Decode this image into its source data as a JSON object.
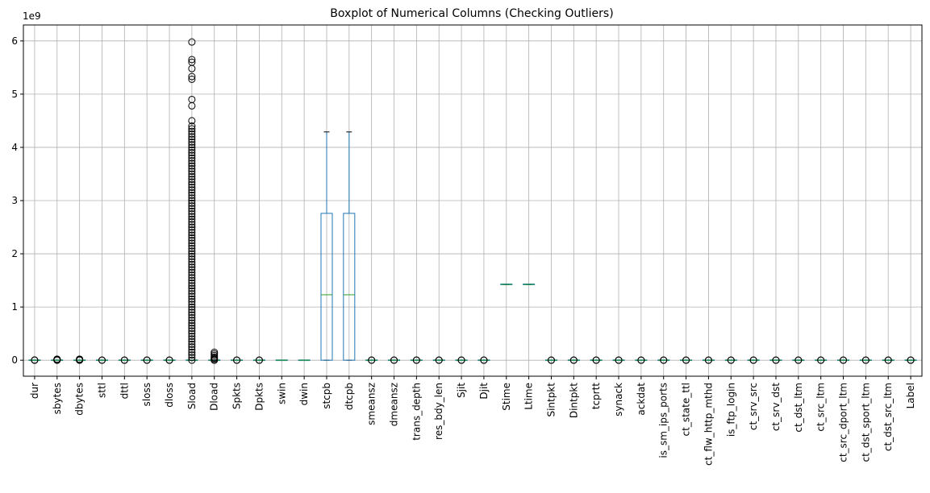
{
  "chart_data": {
    "type": "boxplot",
    "title": "Boxplot of Numerical Columns (Checking Outliers)",
    "y_offset_label": "1e9",
    "xlabel": "",
    "ylabel": "",
    "ylim": [
      -0.3,
      6.3
    ],
    "y_scale_factor": 1000000000,
    "yticks": [
      0,
      1,
      2,
      3,
      4,
      5,
      6
    ],
    "ytick_labels": [
      "0",
      "1",
      "2",
      "3",
      "4",
      "5",
      "6"
    ],
    "grid": true,
    "box_color": "#1f77b4",
    "median_color": "#2ca02c",
    "categories": [
      "dur",
      "sbytes",
      "dbytes",
      "sttl",
      "dttl",
      "sloss",
      "dloss",
      "Sload",
      "Dload",
      "Spkts",
      "Dpkts",
      "swin",
      "dwin",
      "stcpb",
      "dtcpb",
      "smeansz",
      "dmeansz",
      "trans_depth",
      "res_bdy_len",
      "Sjit",
      "Djit",
      "Stime",
      "Ltime",
      "Sintpkt",
      "Dintpkt",
      "tcprtt",
      "synack",
      "ackdat",
      "is_sm_ips_ports",
      "ct_state_ttl",
      "ct_flw_http_mthd",
      "is_ftp_login",
      "ct_srv_src",
      "ct_srv_dst",
      "ct_dst_ltm",
      "ct_src_ltm",
      "ct_src_dport_ltm",
      "ct_dst_sport_ltm",
      "ct_dst_src_ltm",
      "Label"
    ],
    "boxes": [
      {
        "q1": 0,
        "median": 0,
        "q3": 0,
        "whislo": 0,
        "whishi": 0,
        "fliers": [
          0,
          0.004
        ]
      },
      {
        "q1": 0,
        "median": 0,
        "q3": 0,
        "whislo": 0,
        "whishi": 0,
        "fliers": [
          0,
          0.005,
          0.01,
          0.015,
          0.02
        ]
      },
      {
        "q1": 0,
        "median": 0,
        "q3": 0,
        "whislo": 0,
        "whishi": 0,
        "fliers": [
          0,
          0.005,
          0.01,
          0.015,
          0.02
        ]
      },
      {
        "q1": 0,
        "median": 0,
        "q3": 0,
        "whislo": 0,
        "whishi": 0,
        "fliers": [
          0,
          0.002
        ]
      },
      {
        "q1": 0,
        "median": 0,
        "q3": 0,
        "whislo": 0,
        "whishi": 0,
        "fliers": [
          0,
          0.002
        ]
      },
      {
        "q1": 0,
        "median": 0,
        "q3": 0,
        "whislo": 0,
        "whishi": 0,
        "fliers": [
          0,
          0.002
        ]
      },
      {
        "q1": 0,
        "median": 0,
        "q3": 0,
        "whislo": 0,
        "whishi": 0,
        "fliers": [
          0,
          0.002
        ]
      },
      {
        "q1": 0,
        "median": 0,
        "q3": 0,
        "whislo": 0,
        "whishi": 0,
        "fliers": [
          0,
          0.05,
          0.1,
          0.15,
          0.2,
          0.25,
          0.3,
          0.35,
          0.4,
          0.45,
          0.5,
          0.55,
          0.6,
          0.65,
          0.7,
          0.75,
          0.8,
          0.85,
          0.9,
          0.95,
          1.0,
          1.05,
          1.1,
          1.15,
          1.2,
          1.25,
          1.3,
          1.35,
          1.4,
          1.45,
          1.5,
          1.55,
          1.6,
          1.65,
          1.7,
          1.75,
          1.8,
          1.85,
          1.9,
          1.95,
          2.0,
          2.05,
          2.1,
          2.15,
          2.2,
          2.25,
          2.3,
          2.35,
          2.4,
          2.45,
          2.5,
          2.55,
          2.6,
          2.65,
          2.7,
          2.75,
          2.8,
          2.85,
          2.9,
          2.95,
          3.0,
          3.05,
          3.1,
          3.15,
          3.2,
          3.25,
          3.3,
          3.35,
          3.4,
          3.45,
          3.5,
          3.55,
          3.6,
          3.65,
          3.7,
          3.75,
          3.8,
          3.85,
          3.9,
          3.95,
          4.0,
          4.05,
          4.1,
          4.15,
          4.2,
          4.25,
          4.3,
          4.35,
          4.4,
          4.5,
          4.78,
          4.9,
          5.28,
          5.33,
          5.48,
          5.6,
          5.65,
          5.98
        ]
      },
      {
        "q1": 0,
        "median": 0,
        "q3": 0,
        "whislo": 0,
        "whishi": 0,
        "fliers": [
          0,
          0.02,
          0.04,
          0.06,
          0.09,
          0.12,
          0.15
        ]
      },
      {
        "q1": 0,
        "median": 0,
        "q3": 0,
        "whislo": 0,
        "whishi": 0,
        "fliers": [
          0,
          0.002
        ]
      },
      {
        "q1": 0,
        "median": 0,
        "q3": 0,
        "whislo": 0,
        "whishi": 0,
        "fliers": [
          0,
          0.002
        ]
      },
      {
        "q1": 0,
        "median": 0,
        "q3": 0,
        "whislo": 0,
        "whishi": 0,
        "fliers": []
      },
      {
        "q1": 0,
        "median": 0,
        "q3": 0,
        "whislo": 0,
        "whishi": 0,
        "fliers": []
      },
      {
        "q1": 0,
        "median": 1.23,
        "q3": 2.76,
        "whislo": 0,
        "whishi": 4.29,
        "fliers": []
      },
      {
        "q1": 0,
        "median": 1.23,
        "q3": 2.76,
        "whislo": 0,
        "whishi": 4.29,
        "fliers": []
      },
      {
        "q1": 0,
        "median": 0,
        "q3": 0,
        "whislo": 0,
        "whishi": 0,
        "fliers": [
          0,
          0.002
        ]
      },
      {
        "q1": 0,
        "median": 0,
        "q3": 0,
        "whislo": 0,
        "whishi": 0,
        "fliers": [
          0,
          0.002
        ]
      },
      {
        "q1": 0,
        "median": 0,
        "q3": 0,
        "whislo": 0,
        "whishi": 0,
        "fliers": [
          0,
          0.002
        ]
      },
      {
        "q1": 0,
        "median": 0,
        "q3": 0,
        "whislo": 0,
        "whishi": 0,
        "fliers": [
          0,
          0.002
        ]
      },
      {
        "q1": 0,
        "median": 0,
        "q3": 0,
        "whislo": 0,
        "whishi": 0,
        "fliers": [
          0,
          0.002
        ]
      },
      {
        "q1": 0,
        "median": 0,
        "q3": 0,
        "whislo": 0,
        "whishi": 0,
        "fliers": [
          0,
          0.002
        ]
      },
      {
        "q1": 1.42,
        "median": 1.424,
        "q3": 1.426,
        "whislo": 1.419,
        "whishi": 1.428,
        "fliers": []
      },
      {
        "q1": 1.42,
        "median": 1.424,
        "q3": 1.426,
        "whislo": 1.419,
        "whishi": 1.428,
        "fliers": []
      },
      {
        "q1": 0,
        "median": 0,
        "q3": 0,
        "whislo": 0,
        "whishi": 0,
        "fliers": [
          0,
          0.002
        ]
      },
      {
        "q1": 0,
        "median": 0,
        "q3": 0,
        "whislo": 0,
        "whishi": 0,
        "fliers": [
          0,
          0.002
        ]
      },
      {
        "q1": 0,
        "median": 0,
        "q3": 0,
        "whislo": 0,
        "whishi": 0,
        "fliers": [
          0,
          0.002
        ]
      },
      {
        "q1": 0,
        "median": 0,
        "q3": 0,
        "whislo": 0,
        "whishi": 0,
        "fliers": [
          0,
          0.002
        ]
      },
      {
        "q1": 0,
        "median": 0,
        "q3": 0,
        "whislo": 0,
        "whishi": 0,
        "fliers": [
          0,
          0.002
        ]
      },
      {
        "q1": 0,
        "median": 0,
        "q3": 0,
        "whislo": 0,
        "whishi": 0,
        "fliers": [
          0,
          0.002
        ]
      },
      {
        "q1": 0,
        "median": 0,
        "q3": 0,
        "whislo": 0,
        "whishi": 0,
        "fliers": [
          0,
          0.002
        ]
      },
      {
        "q1": 0,
        "median": 0,
        "q3": 0,
        "whislo": 0,
        "whishi": 0,
        "fliers": [
          0,
          0.002
        ]
      },
      {
        "q1": 0,
        "median": 0,
        "q3": 0,
        "whislo": 0,
        "whishi": 0,
        "fliers": [
          0,
          0.002
        ]
      },
      {
        "q1": 0,
        "median": 0,
        "q3": 0,
        "whislo": 0,
        "whishi": 0,
        "fliers": [
          0,
          0.002
        ]
      },
      {
        "q1": 0,
        "median": 0,
        "q3": 0,
        "whislo": 0,
        "whishi": 0,
        "fliers": [
          0,
          0.002
        ]
      },
      {
        "q1": 0,
        "median": 0,
        "q3": 0,
        "whislo": 0,
        "whishi": 0,
        "fliers": [
          0,
          0.002
        ]
      },
      {
        "q1": 0,
        "median": 0,
        "q3": 0,
        "whislo": 0,
        "whishi": 0,
        "fliers": [
          0,
          0.002
        ]
      },
      {
        "q1": 0,
        "median": 0,
        "q3": 0,
        "whislo": 0,
        "whishi": 0,
        "fliers": [
          0,
          0.002
        ]
      },
      {
        "q1": 0,
        "median": 0,
        "q3": 0,
        "whislo": 0,
        "whishi": 0,
        "fliers": [
          0,
          0.002
        ]
      },
      {
        "q1": 0,
        "median": 0,
        "q3": 0,
        "whislo": 0,
        "whishi": 0,
        "fliers": [
          0,
          0.002
        ]
      },
      {
        "q1": 0,
        "median": 0,
        "q3": 0,
        "whislo": 0,
        "whishi": 0,
        "fliers": [
          0,
          0.002
        ]
      }
    ]
  }
}
